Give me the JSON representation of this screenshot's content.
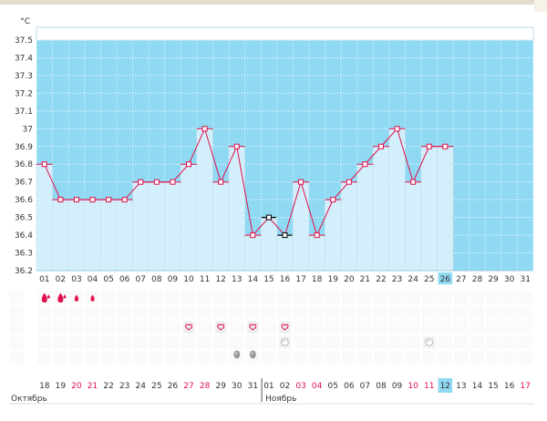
{
  "chart_data": {
    "type": "line",
    "title": "",
    "unit_label": "°C",
    "ylim": [
      36.2,
      37.5
    ],
    "y_ticks": [
      "36.2",
      "36.3",
      "36.4",
      "36.5",
      "36.6",
      "36.7",
      "36.8",
      "36.9",
      "37",
      "37.1",
      "37.2",
      "37.3",
      "37.4",
      "37.5"
    ],
    "cycle_days": [
      "01",
      "02",
      "03",
      "04",
      "05",
      "06",
      "07",
      "08",
      "09",
      "10",
      "11",
      "12",
      "13",
      "14",
      "15",
      "16",
      "17",
      "18",
      "19",
      "20",
      "21",
      "22",
      "23",
      "24",
      "25",
      "26",
      "27",
      "28",
      "29",
      "30",
      "31"
    ],
    "current_day_index": 25,
    "series": [
      {
        "values": [
          36.8,
          36.6,
          36.6,
          36.6,
          36.6,
          36.6,
          36.7,
          36.7,
          36.7,
          36.8,
          37.0,
          36.7,
          36.9,
          36.4,
          36.5,
          36.4,
          36.7,
          36.4,
          36.6,
          36.7,
          36.8,
          36.9,
          37.0,
          36.7,
          36.9,
          36.9
        ]
      }
    ],
    "excluded_day_indices": [
      14,
      15
    ],
    "grid": true,
    "colors": {
      "background": "#90d9f2",
      "bar_fill": "#d2effb",
      "bar_stroke": "#a4cfe4",
      "line": "#e0104a",
      "marker": "#e0104a",
      "excluded_marker": "#000000",
      "current_day_bg": "#90d9f2"
    },
    "markers": {
      "flow_days": [
        0,
        1,
        2,
        3
      ],
      "intercourse_days": [
        9,
        11,
        13,
        15
      ],
      "tests": [
        {
          "day": 15,
          "icon": "test-icon"
        },
        {
          "day": 24,
          "icon": "test-icon"
        }
      ],
      "discharge_days": [
        12,
        13
      ]
    },
    "calendar": {
      "dates": [
        "18",
        "19",
        "20",
        "21",
        "22",
        "23",
        "24",
        "25",
        "26",
        "27",
        "28",
        "29",
        "30",
        "31",
        "01",
        "02",
        "03",
        "04",
        "05",
        "06",
        "07",
        "08",
        "09",
        "10",
        "11",
        "12",
        "13",
        "14",
        "15",
        "16",
        "17"
      ],
      "weekend_indices": [
        2,
        3,
        9,
        10,
        16,
        17,
        23,
        24,
        30
      ],
      "months": [
        {
          "label": "Октябрь",
          "start_index": 0
        },
        {
          "label": "Ноябрь",
          "start_index": 14
        }
      ]
    }
  }
}
